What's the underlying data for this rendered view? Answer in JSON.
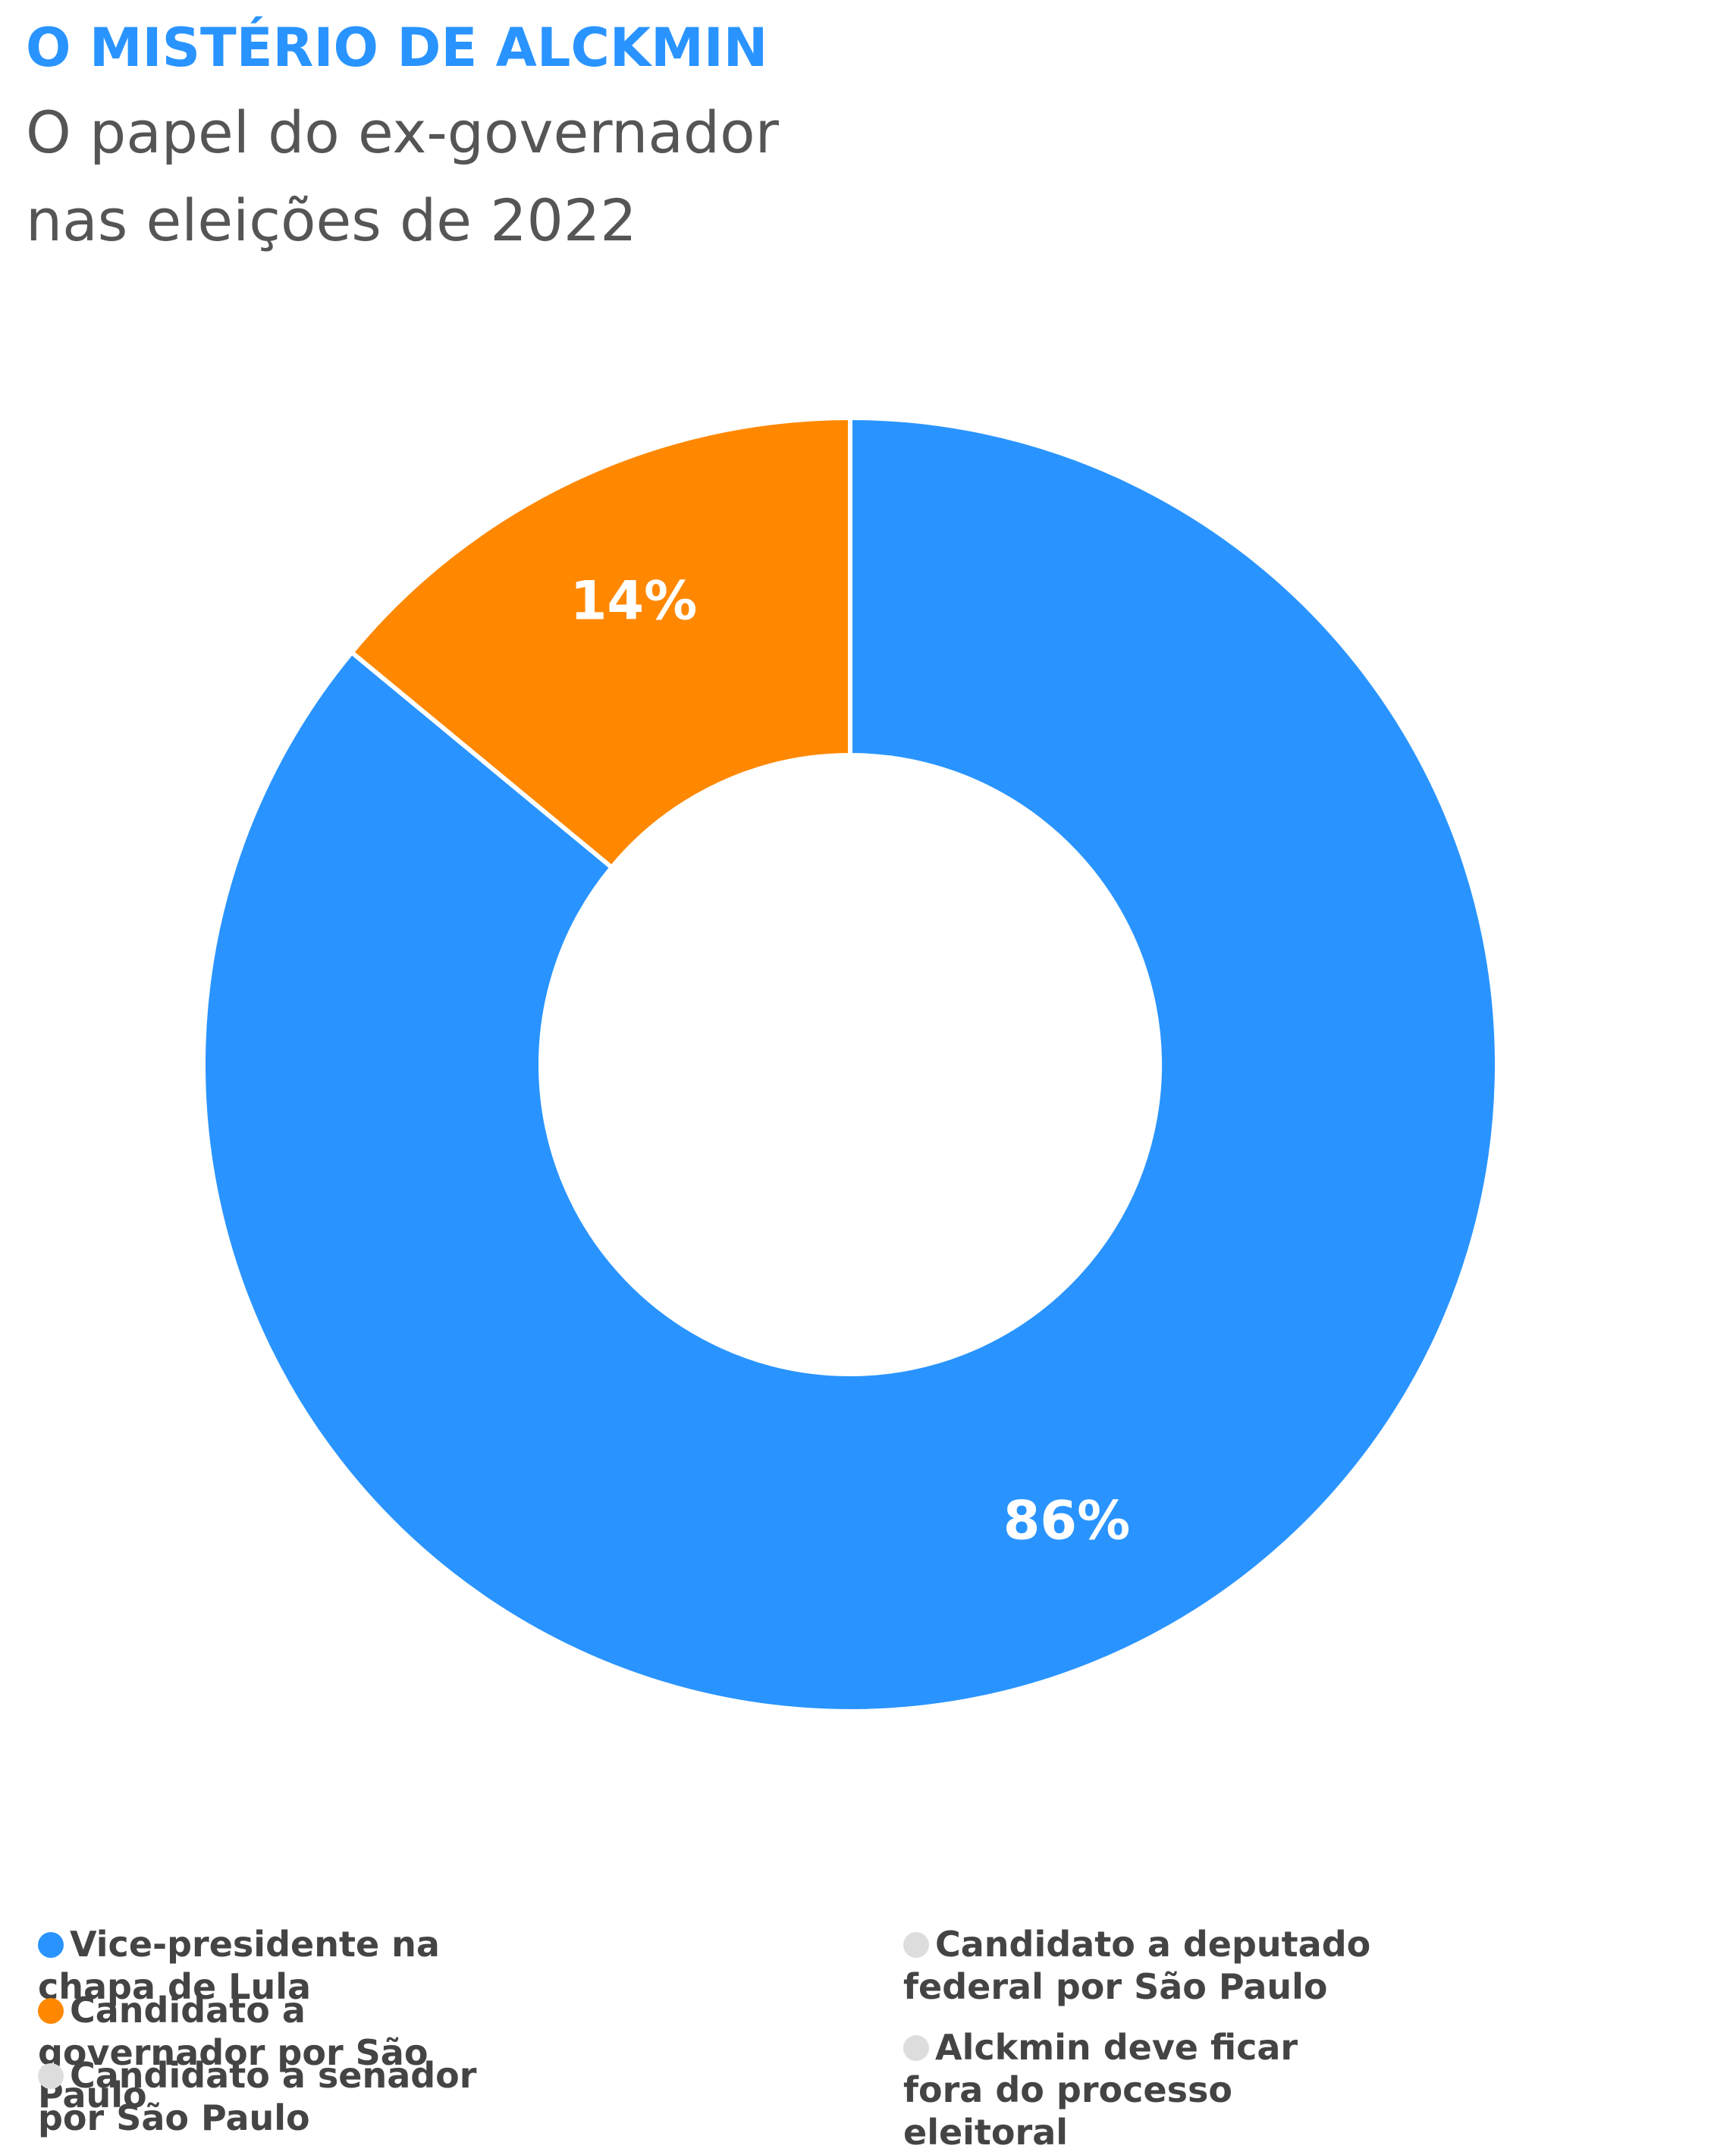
{
  "chart_data": {
    "type": "donut",
    "title": "O MISTÉRIO DE ALCKMIN",
    "subtitle": [
      "O papel do ex-governador",
      "nas eleições de 2022"
    ],
    "categories": [
      "Vice-presidente na chapa de Lula",
      "Candidato a governador por São Paulo",
      "Candidato a senador por São Paulo",
      "Candidato a deputado federal por São Paulo",
      "Alckmin deve ficar fora do processo eleitoral"
    ],
    "values": [
      86,
      14,
      0,
      0,
      0
    ],
    "value_labels": [
      "86%",
      "14%",
      null,
      null,
      null
    ],
    "colors": [
      "#2994ff",
      "#ff8800",
      "#dddddd",
      "#dddddd",
      "#dddddd"
    ]
  }
}
